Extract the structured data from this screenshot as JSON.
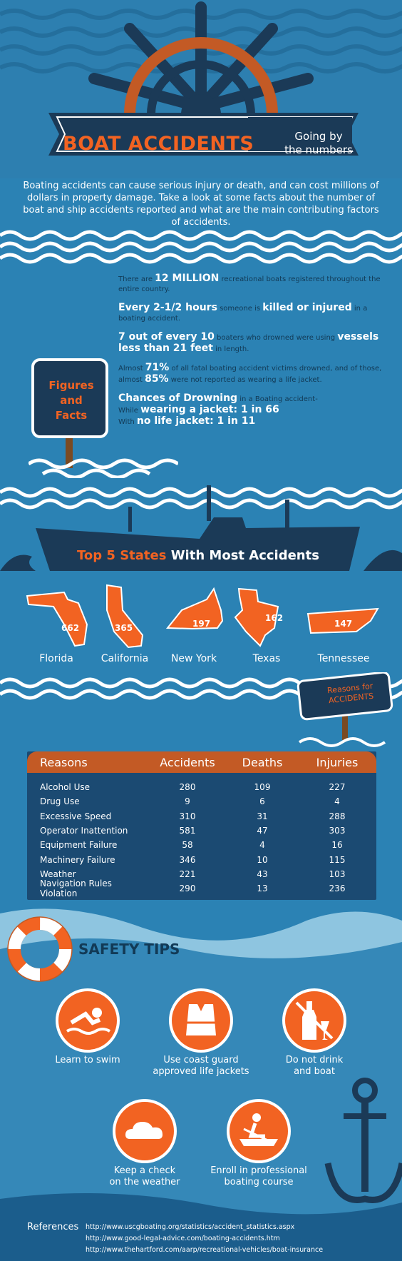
{
  "header": {
    "title": "BOAT ACCIDENTS",
    "subtitle_line1": "Going by",
    "subtitle_line2": "the numbers"
  },
  "intro": "Boating accidents can cause serious injury or death, and can cost millions of dollars in property damage. Take a look at some facts about the number of boat and ship accidents reported and what are the main contributing factors of accidents.",
  "figures_sign": {
    "line1": "Figures",
    "line2": "and",
    "line3": "Facts"
  },
  "facts": {
    "f1_pre": "There are ",
    "f1_bold": "12 MILLION",
    "f1_post": " recreational boats registered throughout the entire country.",
    "f2_bold1": "Every 2-1/2 hours",
    "f2_mid": " someone is ",
    "f2_bold2": "killed or injured",
    "f2_post": " in a boating accident.",
    "f3_bold1": "7 out of every 10",
    "f3_mid": " boaters who drowned were using ",
    "f3_bold2": "vessels less than 21 feet",
    "f3_post": " in length.",
    "f4_pre": "Almost ",
    "f4_bold1": "71%",
    "f4_mid": " of all fatal boating accident victims drowned, and of those, almost ",
    "f4_bold2": "85%",
    "f4_post": " were not reported as wearing a life jacket.",
    "f5_bold1": "Chances of Drowning",
    "f5_post1": " in a Boating accident-",
    "f5_pre2": "While ",
    "f5_bold2": "wearing a jacket: 1 in 66",
    "f5_pre3": "With ",
    "f5_bold3": "no life jacket: 1 in 11"
  },
  "states": {
    "title_highlight": "Top 5 States",
    "title_rest": " With Most Accidents",
    "items": [
      {
        "name": "Florida",
        "count": "662"
      },
      {
        "name": "California",
        "count": "365"
      },
      {
        "name": "New York",
        "count": "197"
      },
      {
        "name": "Texas",
        "count": "162"
      },
      {
        "name": "Tennessee",
        "count": "147"
      }
    ]
  },
  "reasons_sign": {
    "line1": "Reasons for",
    "line2": "ACCIDENTS"
  },
  "table": {
    "headers": [
      "Reasons",
      "Accidents",
      "Deaths",
      "Injuries"
    ],
    "rows": [
      [
        "Alcohol Use",
        "280",
        "109",
        "227"
      ],
      [
        "Drug Use",
        "9",
        "6",
        "4"
      ],
      [
        "Excessive Speed",
        "310",
        "31",
        "288"
      ],
      [
        "Operator Inattention",
        "581",
        "47",
        "303"
      ],
      [
        "Equipment Failure",
        "58",
        "4",
        "16"
      ],
      [
        "Machinery Failure",
        "346",
        "10",
        "115"
      ],
      [
        "Weather",
        "221",
        "43",
        "103"
      ],
      [
        "Navigation Rules Violation",
        "290",
        "13",
        "236"
      ]
    ]
  },
  "safety": {
    "title": "SAFETY TIPS",
    "tips": [
      {
        "line1": "Learn to swim",
        "line2": "",
        "icon": "swimmer-icon"
      },
      {
        "line1": "Use coast guard",
        "line2": "approved life jackets",
        "icon": "life-jacket-icon"
      },
      {
        "line1": "Do not drink",
        "line2": "and boat",
        "icon": "no-alcohol-icon"
      },
      {
        "line1": "Keep a check",
        "line2": "on the weather",
        "icon": "cloud-icon"
      },
      {
        "line1": "Enroll in professional",
        "line2": "boating course",
        "icon": "rowing-icon"
      }
    ]
  },
  "references": {
    "label": "References",
    "links": [
      "http://www.uscgboating.org/statistics/accident_statistics.aspx",
      "http://www.good-legal-advice.com/boating-accidents.htm",
      "http://www.thehartford.com/aarp/recreational-vehicles/boat-insurance"
    ]
  },
  "colors": {
    "ocean": "#2b82b4",
    "navy": "#1b3a57",
    "orange": "#f26322",
    "rust": "#c35a25"
  }
}
